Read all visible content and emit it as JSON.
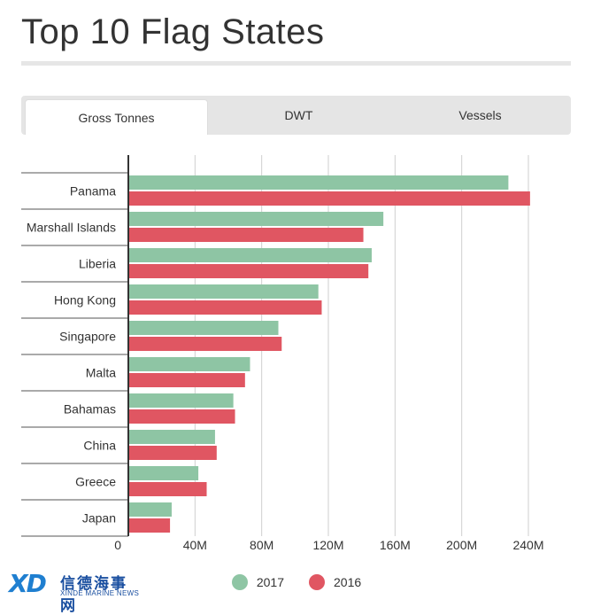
{
  "title": "Top 10 Flag States",
  "tabs": [
    {
      "label": "Gross Tonnes",
      "active": true
    },
    {
      "label": "DWT",
      "active": false
    },
    {
      "label": "Vessels",
      "active": false
    }
  ],
  "colors": {
    "series_2017": "#8ec5a4",
    "series_2016": "#e05662"
  },
  "logo": {
    "mark": "XD",
    "chinese": "信德海事网",
    "english": "XINDE MARINE NEWS"
  },
  "chart_data": {
    "type": "bar",
    "orientation": "horizontal",
    "title": "Top 10 Flag States",
    "categories": [
      "Panama",
      "Marshall Islands",
      "Liberia",
      "Hong Kong",
      "Singapore",
      "Malta",
      "Bahamas",
      "China",
      "Greece",
      "Japan"
    ],
    "series": [
      {
        "name": "2017",
        "values": [
          228,
          153,
          146,
          114,
          90,
          73,
          63,
          52,
          42,
          26
        ]
      },
      {
        "name": "2016",
        "values": [
          241,
          141,
          144,
          116,
          92,
          70,
          64,
          53,
          47,
          25
        ]
      }
    ],
    "xlim": [
      0,
      240
    ],
    "xticks": [
      {
        "value": 0,
        "label": "0"
      },
      {
        "value": 40,
        "label": "40M"
      },
      {
        "value": 80,
        "label": "80M"
      },
      {
        "value": 120,
        "label": "120M"
      },
      {
        "value": 160,
        "label": "160M"
      },
      {
        "value": 200,
        "label": "200M"
      },
      {
        "value": 240,
        "label": "240M"
      }
    ],
    "grid": true,
    "legend_position": "bottom"
  }
}
